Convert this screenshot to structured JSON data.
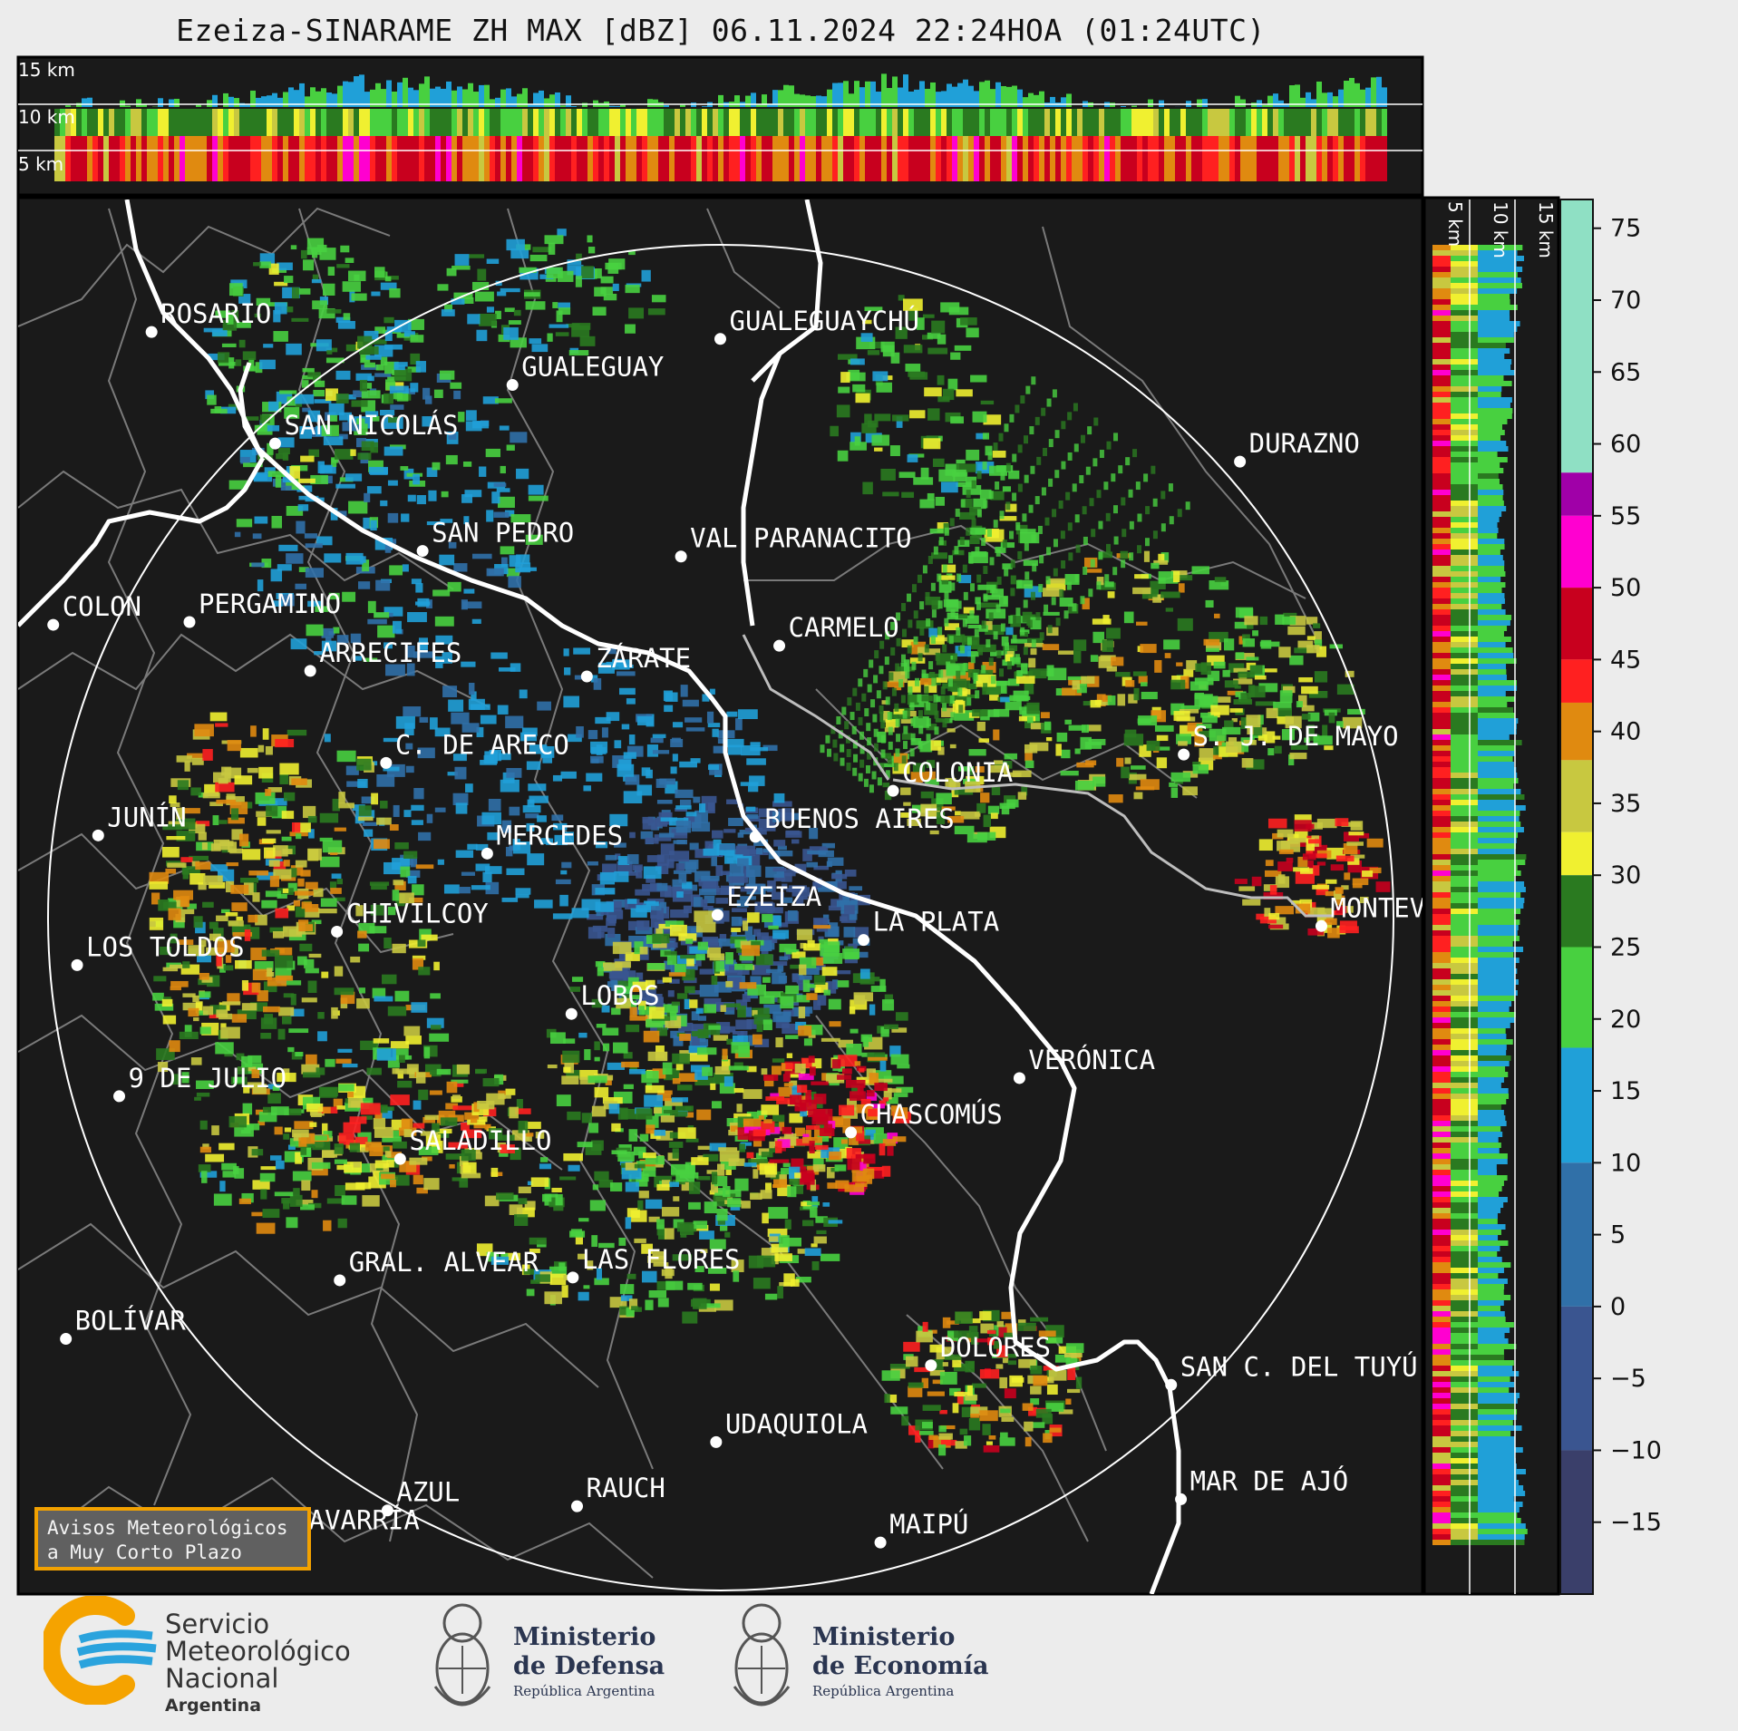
{
  "title": "Ezeiza-SINARAME ZH MAX [dBZ] 06.11.2024 22:24HOA (01:24UTC)",
  "top_panel": {
    "height_labels": [
      "15 km",
      "10 km",
      "5 km"
    ]
  },
  "right_panel": {
    "height_labels": [
      "5 km",
      "10 km",
      "15 km"
    ]
  },
  "colorbar": {
    "unit": "dBZ",
    "ticks": [
      "75",
      "70",
      "65",
      "60",
      "55",
      "50",
      "45",
      "40",
      "35",
      "30",
      "25",
      "20",
      "15",
      "10",
      "5",
      "0",
      "−5",
      "−10",
      "−15"
    ],
    "stops": [
      {
        "from": 58,
        "to": 77,
        "color": "#8fe0c4"
      },
      {
        "from": 55,
        "to": 58,
        "color": "#a000a8"
      },
      {
        "from": 50,
        "to": 55,
        "color": "#ff00d0"
      },
      {
        "from": 45,
        "to": 50,
        "color": "#c8001e"
      },
      {
        "from": 42,
        "to": 45,
        "color": "#ff2020"
      },
      {
        "from": 38,
        "to": 42,
        "color": "#e08a10"
      },
      {
        "from": 33,
        "to": 38,
        "color": "#c8c840"
      },
      {
        "from": 30,
        "to": 33,
        "color": "#f0f030"
      },
      {
        "from": 25,
        "to": 30,
        "color": "#2a7a20"
      },
      {
        "from": 18,
        "to": 25,
        "color": "#48d040"
      },
      {
        "from": 10,
        "to": 18,
        "color": "#20a0d8"
      },
      {
        "from": 0,
        "to": 10,
        "color": "#3070a8"
      },
      {
        "from": -10,
        "to": 0,
        "color": "#3a5590"
      },
      {
        "from": -20,
        "to": -10,
        "color": "#3a3f6a"
      }
    ]
  },
  "cities": [
    {
      "name": "ROSARIO",
      "lon": 0.095,
      "lat": 0.095
    },
    {
      "name": "GUALEGUAYCHÚ",
      "lon": 0.5,
      "lat": 0.1
    },
    {
      "name": "GUALEGUAY",
      "lon": 0.352,
      "lat": 0.133
    },
    {
      "name": "SAN NICOLÁS",
      "lon": 0.183,
      "lat": 0.175
    },
    {
      "name": "DURAZNO",
      "lon": 0.87,
      "lat": 0.188
    },
    {
      "name": "SAN PEDRO",
      "lon": 0.288,
      "lat": 0.252
    },
    {
      "name": "VAL PARANACITO",
      "lon": 0.472,
      "lat": 0.256
    },
    {
      "name": "COLON",
      "lon": 0.025,
      "lat": 0.305
    },
    {
      "name": "PERGAMINO",
      "lon": 0.122,
      "lat": 0.303
    },
    {
      "name": "CARMELO",
      "lon": 0.542,
      "lat": 0.32
    },
    {
      "name": "ARRECIFES",
      "lon": 0.208,
      "lat": 0.338
    },
    {
      "name": "ZÁRATE",
      "lon": 0.405,
      "lat": 0.342
    },
    {
      "name": "S. J. DE MAYO",
      "lon": 0.83,
      "lat": 0.398
    },
    {
      "name": "C. DE ARECO",
      "lon": 0.262,
      "lat": 0.404
    },
    {
      "name": "COLONIA",
      "lon": 0.623,
      "lat": 0.424
    },
    {
      "name": "JUNÍN",
      "lon": 0.057,
      "lat": 0.456
    },
    {
      "name": "BUENOS AIRES",
      "lon": 0.525,
      "lat": 0.457
    },
    {
      "name": "MERCEDES",
      "lon": 0.334,
      "lat": 0.469
    },
    {
      "name": "EZEIZA",
      "lon": 0.498,
      "lat": 0.513
    },
    {
      "name": "MONTEVIDEO",
      "lon": 0.928,
      "lat": 0.521
    },
    {
      "name": "CHIVILCOY",
      "lon": 0.227,
      "lat": 0.525
    },
    {
      "name": "LA PLATA",
      "lon": 0.602,
      "lat": 0.531
    },
    {
      "name": "LOS TOLDOS",
      "lon": 0.042,
      "lat": 0.549
    },
    {
      "name": "LOBOS",
      "lon": 0.394,
      "lat": 0.584
    },
    {
      "name": "VERÓNICA",
      "lon": 0.713,
      "lat": 0.63
    },
    {
      "name": "9 DE JULIO",
      "lon": 0.072,
      "lat": 0.643
    },
    {
      "name": "CHASCOMÚS",
      "lon": 0.593,
      "lat": 0.669
    },
    {
      "name": "SALADILLO",
      "lon": 0.272,
      "lat": 0.688
    },
    {
      "name": "GRAL. ALVEAR",
      "lon": 0.229,
      "lat": 0.775
    },
    {
      "name": "LAS FLORES",
      "lon": 0.395,
      "lat": 0.773
    },
    {
      "name": "BOLÍVAR",
      "lon": 0.034,
      "lat": 0.817
    },
    {
      "name": "DOLORES",
      "lon": 0.65,
      "lat": 0.836
    },
    {
      "name": "SAN C. DEL TUYÚ",
      "lon": 0.821,
      "lat": 0.85
    },
    {
      "name": "UDAQUIOLA",
      "lon": 0.497,
      "lat": 0.891
    },
    {
      "name": "MAR DE AJÓ",
      "lon": 0.828,
      "lat": 0.932
    },
    {
      "name": "AZUL",
      "lon": 0.263,
      "lat": 0.94
    },
    {
      "name": "RAUCH",
      "lon": 0.398,
      "lat": 0.937
    },
    {
      "name": "OLAVARRÍA",
      "lon": 0.178,
      "lat": 0.96
    },
    {
      "name": "MAIPÚ",
      "lon": 0.614,
      "lat": 0.963
    }
  ],
  "alert_box": {
    "line1": "Avisos Meteorológicos",
    "line2": "a Muy Corto Plazo"
  },
  "logos": {
    "smn": {
      "line1": "Servicio",
      "line2": "Meteorológico",
      "line3": "Nacional",
      "line4": "Argentina"
    },
    "defensa": {
      "line1": "Ministerio",
      "line2": "de Defensa",
      "line3": "República Argentina"
    },
    "economia": {
      "line1": "Ministerio",
      "line2": "de Economía",
      "line3": "República Argentina"
    }
  },
  "colors": {
    "map_bg": "#1a1a1a",
    "river": "#ffffff",
    "borders": "#7a7a7a",
    "range_ring": "#ffffff",
    "alert_border": "#f2a100",
    "smn_blue": "#2aa3dd",
    "smn_orange": "#f5a300"
  }
}
